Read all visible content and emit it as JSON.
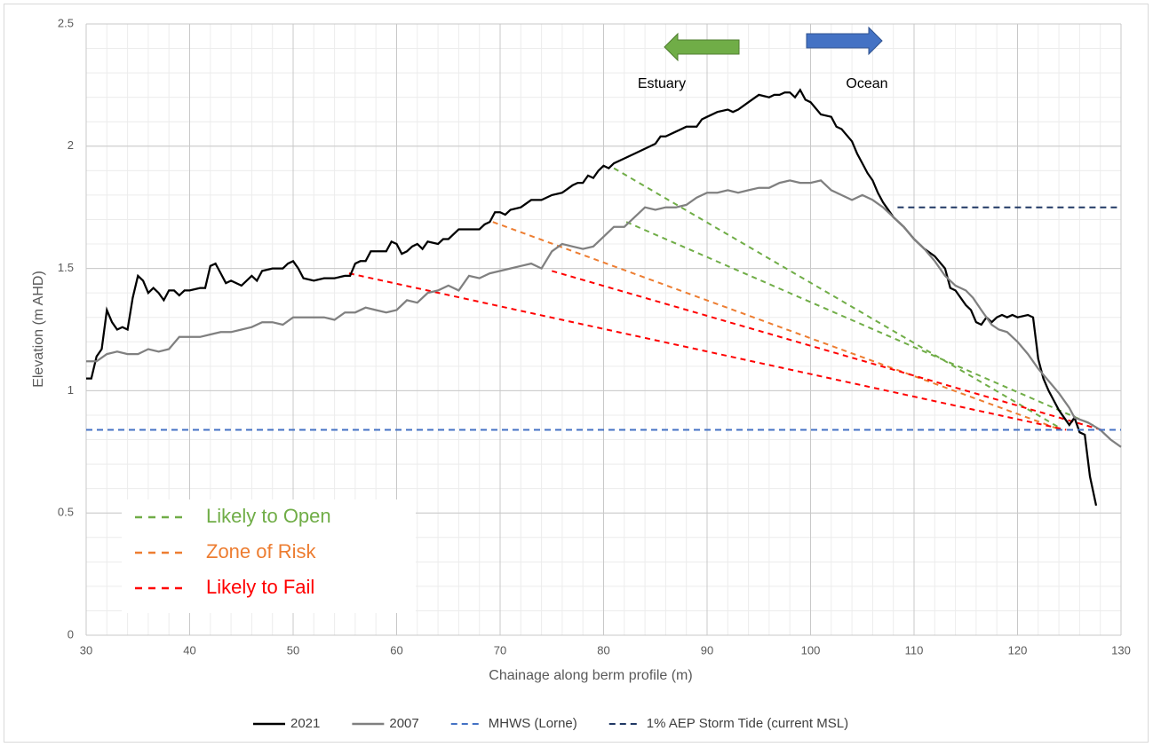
{
  "chart_data": {
    "type": "line",
    "x_label": "Chainage along berm profile (m)",
    "y_label": "Elevation (m AHD)",
    "xlim": [
      30,
      130
    ],
    "xticks": [
      30,
      40,
      50,
      60,
      70,
      80,
      90,
      100,
      110,
      120,
      130
    ],
    "ylim": [
      0,
      2.5
    ],
    "yticks": [
      0,
      0.5,
      1,
      1.5,
      2,
      2.5
    ],
    "grid": true,
    "minor_grid": true,
    "series": [
      {
        "name": "2021",
        "color": "#000000",
        "dash": false,
        "x": [
          30,
          30.5,
          31,
          31.5,
          32,
          32.5,
          33,
          33.5,
          34,
          34.5,
          35,
          35.5,
          36,
          36.5,
          37,
          37.5,
          38,
          38.5,
          39,
          39.5,
          40,
          41,
          41.5,
          42,
          42.5,
          43,
          43.5,
          44,
          45,
          46,
          46.5,
          47,
          48,
          49,
          49.5,
          50,
          50.5,
          51,
          52,
          53,
          54,
          55,
          55.5,
          56,
          56.5,
          57,
          57.5,
          58,
          59,
          59.5,
          60,
          60.5,
          61,
          61.5,
          62,
          62.5,
          63,
          64,
          64.5,
          65,
          66,
          67,
          68,
          68.5,
          69,
          69.5,
          70,
          70.5,
          71,
          72,
          73,
          74,
          75,
          76,
          77,
          77.5,
          78,
          78.5,
          79,
          79.5,
          80,
          80.5,
          81,
          82,
          83,
          84,
          85,
          85.5,
          86,
          87,
          88,
          89,
          89.5,
          90,
          91,
          92,
          92.5,
          93,
          94,
          95,
          96,
          96.5,
          97,
          97.5,
          98,
          98.5,
          99,
          99.5,
          100,
          101,
          102,
          102.5,
          103,
          104,
          104.5,
          105,
          105.5,
          106,
          106.5,
          107,
          108,
          109,
          110,
          111,
          112,
          113,
          113.5,
          114,
          115,
          115.5,
          116,
          116.5,
          117,
          117.5,
          118,
          118.5,
          119,
          119.5,
          120,
          121,
          121.5,
          122,
          122.5,
          123,
          123.5,
          124,
          124.5,
          125,
          125.5,
          126,
          126.5,
          127,
          127.6
        ],
        "values": [
          1.05,
          1.05,
          1.14,
          1.17,
          1.33,
          1.28,
          1.25,
          1.26,
          1.25,
          1.38,
          1.47,
          1.45,
          1.4,
          1.42,
          1.4,
          1.37,
          1.41,
          1.41,
          1.39,
          1.41,
          1.41,
          1.42,
          1.42,
          1.51,
          1.52,
          1.48,
          1.44,
          1.45,
          1.43,
          1.47,
          1.45,
          1.49,
          1.5,
          1.5,
          1.52,
          1.53,
          1.5,
          1.46,
          1.45,
          1.46,
          1.46,
          1.47,
          1.47,
          1.52,
          1.53,
          1.53,
          1.57,
          1.57,
          1.57,
          1.61,
          1.6,
          1.56,
          1.57,
          1.59,
          1.6,
          1.58,
          1.61,
          1.6,
          1.62,
          1.62,
          1.66,
          1.66,
          1.66,
          1.68,
          1.69,
          1.73,
          1.73,
          1.72,
          1.74,
          1.75,
          1.78,
          1.78,
          1.8,
          1.81,
          1.84,
          1.85,
          1.85,
          1.88,
          1.87,
          1.9,
          1.92,
          1.91,
          1.93,
          1.95,
          1.97,
          1.99,
          2.01,
          2.04,
          2.04,
          2.06,
          2.08,
          2.08,
          2.11,
          2.12,
          2.14,
          2.15,
          2.14,
          2.15,
          2.18,
          2.21,
          2.2,
          2.21,
          2.21,
          2.22,
          2.22,
          2.2,
          2.23,
          2.19,
          2.18,
          2.13,
          2.12,
          2.08,
          2.07,
          2.02,
          1.97,
          1.93,
          1.89,
          1.86,
          1.81,
          1.77,
          1.71,
          1.67,
          1.62,
          1.58,
          1.55,
          1.5,
          1.42,
          1.41,
          1.35,
          1.33,
          1.28,
          1.27,
          1.3,
          1.28,
          1.3,
          1.31,
          1.3,
          1.31,
          1.3,
          1.31,
          1.3,
          1.13,
          1.05,
          1.0,
          0.96,
          0.92,
          0.89,
          0.86,
          0.89,
          0.83,
          0.82,
          0.65,
          0.53
        ]
      },
      {
        "name": "2007",
        "color": "#808080",
        "dash": false,
        "x": [
          30,
          31,
          32,
          33,
          34,
          35,
          36,
          37,
          38,
          39,
          40,
          41,
          42,
          43,
          44,
          45,
          46,
          47,
          48,
          49,
          50,
          51,
          52,
          53,
          54,
          55,
          56,
          57,
          58,
          59,
          60,
          61,
          62,
          63,
          64,
          65,
          66,
          67,
          68,
          69,
          70,
          71,
          72,
          73,
          74,
          75,
          76,
          77,
          78,
          79,
          80,
          81,
          82,
          83,
          84,
          85,
          86,
          87,
          88,
          89,
          90,
          91,
          92,
          93,
          94,
          95,
          96,
          97,
          98,
          99,
          100,
          101,
          102,
          103,
          104,
          105,
          106,
          107,
          108,
          109,
          110,
          111,
          112,
          113,
          114,
          115,
          115.7,
          116.5,
          117.5,
          118.2,
          119,
          120,
          121,
          122,
          123,
          124,
          125,
          125.5,
          126.8,
          128,
          129,
          130
        ],
        "values": [
          1.12,
          1.12,
          1.15,
          1.16,
          1.15,
          1.15,
          1.17,
          1.16,
          1.17,
          1.22,
          1.22,
          1.22,
          1.23,
          1.24,
          1.24,
          1.25,
          1.26,
          1.28,
          1.28,
          1.27,
          1.3,
          1.3,
          1.3,
          1.3,
          1.29,
          1.32,
          1.32,
          1.34,
          1.33,
          1.32,
          1.33,
          1.37,
          1.36,
          1.4,
          1.41,
          1.43,
          1.41,
          1.47,
          1.46,
          1.48,
          1.49,
          1.5,
          1.51,
          1.52,
          1.5,
          1.57,
          1.6,
          1.59,
          1.58,
          1.59,
          1.63,
          1.67,
          1.67,
          1.71,
          1.75,
          1.74,
          1.75,
          1.75,
          1.76,
          1.79,
          1.81,
          1.81,
          1.82,
          1.81,
          1.82,
          1.83,
          1.83,
          1.85,
          1.86,
          1.85,
          1.85,
          1.86,
          1.82,
          1.8,
          1.78,
          1.8,
          1.78,
          1.75,
          1.71,
          1.67,
          1.62,
          1.58,
          1.53,
          1.47,
          1.43,
          1.41,
          1.38,
          1.33,
          1.27,
          1.25,
          1.24,
          1.2,
          1.15,
          1.09,
          1.04,
          0.99,
          0.93,
          0.89,
          0.87,
          0.84,
          0.8,
          0.77
        ]
      },
      {
        "name": "MHWS (Lorne)",
        "color": "#4472c4",
        "dash": true,
        "x": [
          30,
          130
        ],
        "values": [
          0.84,
          0.84
        ]
      },
      {
        "name": "1% AEP Storm Tide (current MSL)",
        "color": "#203864",
        "dash": true,
        "x": [
          108.4,
          130
        ],
        "values": [
          1.75,
          1.75
        ]
      }
    ],
    "guides": [
      {
        "label": "Likely to Open",
        "color": "#70ad47",
        "lines": [
          {
            "x": [
              81,
              124
            ],
            "values": [
              1.91,
              0.85
            ]
          },
          {
            "x": [
              82.2,
              127.3
            ],
            "values": [
              1.69,
              0.86
            ]
          }
        ]
      },
      {
        "label": "Zone of Risk",
        "color": "#ed7d31",
        "lines": [
          {
            "x": [
              69.3,
              124.2
            ],
            "values": [
              1.69,
              0.84
            ]
          }
        ]
      },
      {
        "label": "Likely to Fail",
        "color": "#ff0000",
        "lines": [
          {
            "x": [
              55.4,
              124.7
            ],
            "values": [
              1.48,
              0.84
            ]
          },
          {
            "x": [
              75,
              128.1
            ],
            "values": [
              1.49,
              0.84
            ]
          }
        ]
      }
    ],
    "annotations": [
      {
        "text": "Estuary"
      },
      {
        "text": "Ocean"
      }
    ]
  }
}
